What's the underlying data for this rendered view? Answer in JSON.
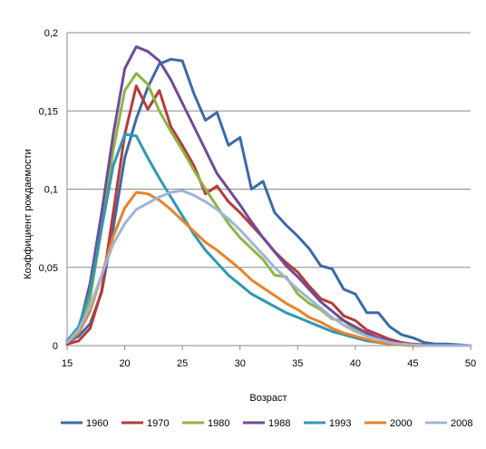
{
  "chart_data": {
    "type": "line",
    "title": "",
    "xlabel": "Возраст",
    "ylabel": "Коэффициент рождаемости",
    "xlim": [
      15,
      50
    ],
    "ylim": [
      0,
      0.2
    ],
    "x_ticks": [
      15,
      20,
      25,
      30,
      35,
      40,
      45,
      50
    ],
    "x_tick_labels": [
      "15",
      "20",
      "25",
      "30",
      "35",
      "40",
      "45",
      "50"
    ],
    "y_ticks": [
      0,
      0.05,
      0.1,
      0.15,
      0.2
    ],
    "y_tick_labels": [
      "0",
      "0,05",
      "0,1",
      "0,15",
      "0,2"
    ],
    "grid": "horizontal",
    "legend_position": "bottom",
    "x": [
      15,
      16,
      17,
      18,
      19,
      20,
      21,
      22,
      23,
      24,
      25,
      26,
      27,
      28,
      29,
      30,
      31,
      32,
      33,
      34,
      35,
      36,
      37,
      38,
      39,
      40,
      41,
      42,
      43,
      44,
      45,
      46,
      47,
      48,
      49,
      50
    ],
    "series": [
      {
        "name": "1960",
        "color": "#3b6aa8",
        "values": [
          0.002,
          0.006,
          0.014,
          0.034,
          0.075,
          0.12,
          0.145,
          0.165,
          0.18,
          0.183,
          0.182,
          0.161,
          0.144,
          0.149,
          0.128,
          0.133,
          0.1,
          0.105,
          0.085,
          0.077,
          0.07,
          0.062,
          0.051,
          0.049,
          0.036,
          0.033,
          0.021,
          0.021,
          0.012,
          0.007,
          0.005,
          0.002,
          0.001,
          0.001,
          0.0005,
          0.0
        ]
      },
      {
        "name": "1970",
        "color": "#b83a3a",
        "values": [
          0.001,
          0.003,
          0.011,
          0.035,
          0.085,
          0.135,
          0.166,
          0.151,
          0.163,
          0.14,
          0.128,
          0.115,
          0.097,
          0.102,
          0.092,
          0.085,
          0.077,
          0.069,
          0.06,
          0.053,
          0.047,
          0.038,
          0.03,
          0.027,
          0.019,
          0.016,
          0.01,
          0.007,
          0.004,
          0.002,
          0.001,
          0.0005,
          0.0,
          0.0,
          0.0,
          0.0
        ]
      },
      {
        "name": "1980",
        "color": "#8db542",
        "values": [
          0.002,
          0.008,
          0.03,
          0.075,
          0.125,
          0.163,
          0.174,
          0.167,
          0.15,
          0.137,
          0.125,
          0.112,
          0.1,
          0.089,
          0.078,
          0.069,
          0.062,
          0.055,
          0.045,
          0.044,
          0.033,
          0.027,
          0.023,
          0.017,
          0.016,
          0.01,
          0.007,
          0.004,
          0.002,
          0.001,
          0.0005,
          0.0,
          0.0,
          0.0,
          0.0,
          0.0
        ]
      },
      {
        "name": "1988",
        "color": "#6f4b9a",
        "values": [
          0.002,
          0.01,
          0.04,
          0.085,
          0.135,
          0.177,
          0.191,
          0.188,
          0.182,
          0.17,
          0.155,
          0.14,
          0.125,
          0.11,
          0.1,
          0.09,
          0.079,
          0.069,
          0.06,
          0.051,
          0.044,
          0.036,
          0.028,
          0.022,
          0.016,
          0.012,
          0.008,
          0.005,
          0.003,
          0.001,
          0.0005,
          0.0,
          0.0,
          0.0,
          0.0,
          0.0
        ]
      },
      {
        "name": "1993",
        "color": "#2f98b4",
        "values": [
          0.003,
          0.012,
          0.035,
          0.075,
          0.115,
          0.135,
          0.134,
          0.12,
          0.107,
          0.095,
          0.083,
          0.071,
          0.061,
          0.053,
          0.045,
          0.039,
          0.033,
          0.029,
          0.025,
          0.021,
          0.018,
          0.015,
          0.012,
          0.009,
          0.007,
          0.005,
          0.003,
          0.002,
          0.001,
          0.0005,
          0.0,
          0.0,
          0.0,
          0.0,
          0.0,
          0.0
        ]
      },
      {
        "name": "2000",
        "color": "#e8822a",
        "values": [
          0.002,
          0.008,
          0.022,
          0.045,
          0.07,
          0.088,
          0.098,
          0.097,
          0.093,
          0.087,
          0.08,
          0.073,
          0.066,
          0.061,
          0.055,
          0.049,
          0.042,
          0.037,
          0.032,
          0.027,
          0.023,
          0.018,
          0.015,
          0.011,
          0.008,
          0.006,
          0.004,
          0.002,
          0.001,
          0.0005,
          0.0,
          0.0,
          0.0,
          0.0,
          0.0,
          0.0
        ]
      },
      {
        "name": "2008",
        "color": "#9fb4d8",
        "values": [
          0.002,
          0.01,
          0.025,
          0.045,
          0.065,
          0.078,
          0.087,
          0.091,
          0.095,
          0.098,
          0.099,
          0.096,
          0.092,
          0.087,
          0.081,
          0.074,
          0.066,
          0.058,
          0.05,
          0.043,
          0.036,
          0.03,
          0.024,
          0.018,
          0.013,
          0.009,
          0.006,
          0.004,
          0.002,
          0.001,
          0.0005,
          0.0,
          0.0,
          0.0,
          0.0,
          0.0
        ]
      }
    ]
  }
}
